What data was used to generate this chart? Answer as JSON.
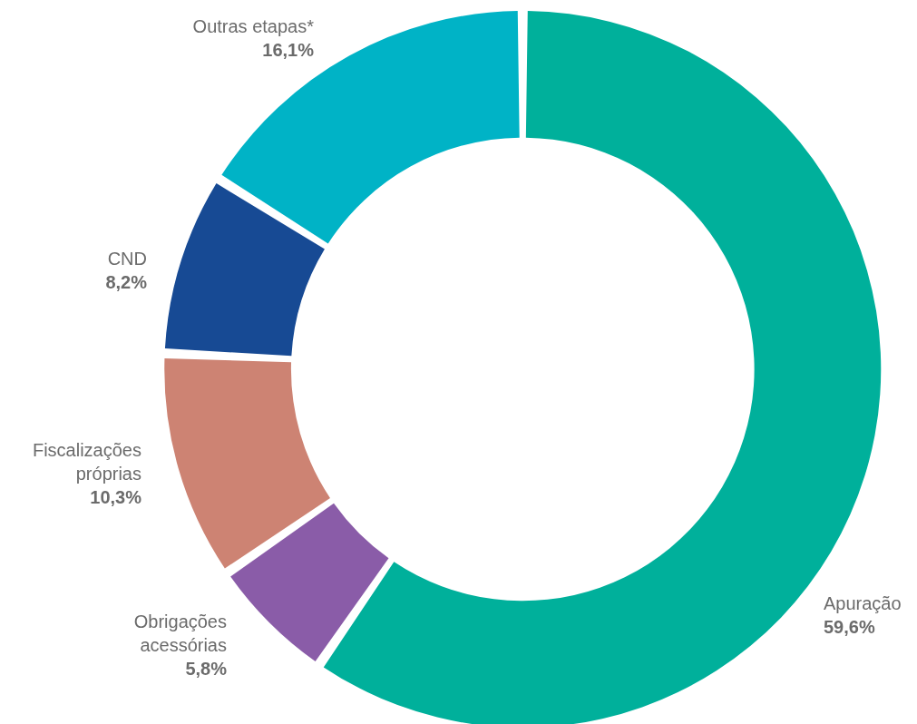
{
  "chart_data": {
    "type": "donut",
    "categories": [
      "Apuração",
      "Obrigações acessórias",
      "Fiscalizações próprias",
      "CND",
      "Outras etapas*"
    ],
    "values": [
      59.6,
      5.8,
      10.3,
      8.2,
      16.1
    ],
    "colors": [
      "#00b09b",
      "#8a5ca8",
      "#cd8373",
      "#174a94",
      "#00b3c6"
    ],
    "value_labels": [
      "59,6%",
      "5,8%",
      "10,3%",
      "8,2%",
      "16,1%"
    ],
    "legend": false
  }
}
